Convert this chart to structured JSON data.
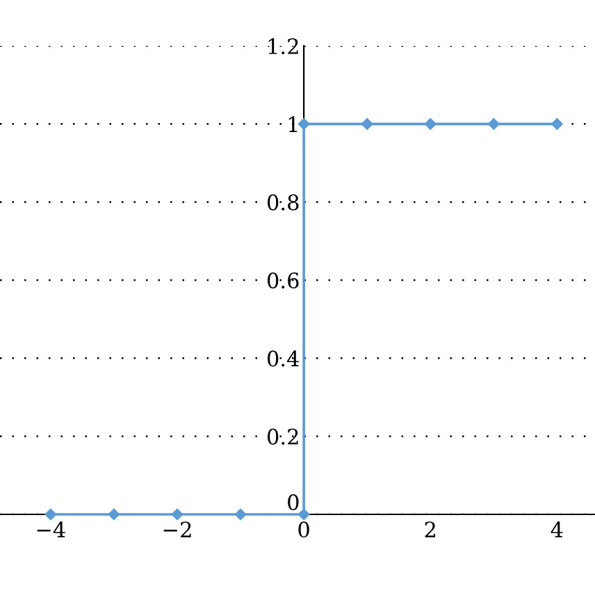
{
  "chart_data": {
    "type": "line",
    "x": [
      -4,
      -3,
      -2,
      -1,
      0,
      0,
      1,
      2,
      3,
      4
    ],
    "series": [
      {
        "color": "#5b9bd5",
        "values": [
          0,
          0,
          0,
          0,
          0,
          1,
          1,
          1,
          1,
          1
        ]
      }
    ],
    "marker": "diamond",
    "line_style": "solid",
    "xlim": [
      -4.8,
      4.6
    ],
    "ylim": [
      0,
      1.2
    ],
    "xticks": [
      {
        "value": -4,
        "label": "−4"
      },
      {
        "value": -2,
        "label": "−2"
      },
      0,
      2,
      4
    ],
    "yticks": [
      0,
      0.2,
      0.4,
      0.6,
      0.8,
      1,
      1.2
    ],
    "grid": "y"
  }
}
